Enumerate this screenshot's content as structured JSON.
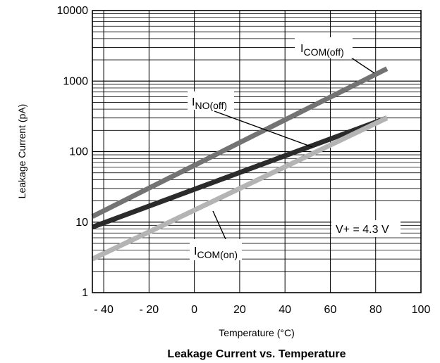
{
  "chart_data": {
    "type": "line",
    "title": "Leakage Current vs. Temperature",
    "xlabel": "Temperature (°C)",
    "ylabel": "Leakage Current  (pA)",
    "xlim": [
      -45,
      100
    ],
    "ylim": [
      1,
      10000
    ],
    "yscale": "log",
    "grid": true,
    "x_ticks": [
      -40,
      -20,
      0,
      20,
      40,
      60,
      80,
      100
    ],
    "x_tick_labels": [
      "- 40",
      "- 20",
      "0",
      "20",
      "40",
      "60",
      "80",
      "100"
    ],
    "y_ticks": [
      1,
      10,
      100,
      1000,
      10000
    ],
    "y_tick_labels": [
      "1",
      "10",
      "100",
      "1000",
      "10000"
    ],
    "series": [
      {
        "name": "I_COM(off)",
        "label_main": "I",
        "label_sub": "COM(off)",
        "color": "#737373",
        "x": [
          -45,
          85
        ],
        "y": [
          12,
          1500
        ]
      },
      {
        "name": "I_NO(off)",
        "label_main": "I",
        "label_sub": "NO(off)",
        "color": "#2b2b2b",
        "x": [
          -45,
          85
        ],
        "y": [
          8.5,
          300
        ]
      },
      {
        "name": "I_COM(on)",
        "label_main": "I",
        "label_sub": "COM(on)",
        "color": "#b4b4b4",
        "x": [
          -45,
          85
        ],
        "y": [
          3.0,
          300
        ]
      }
    ],
    "annotation": "V+ = 4.3 V"
  }
}
